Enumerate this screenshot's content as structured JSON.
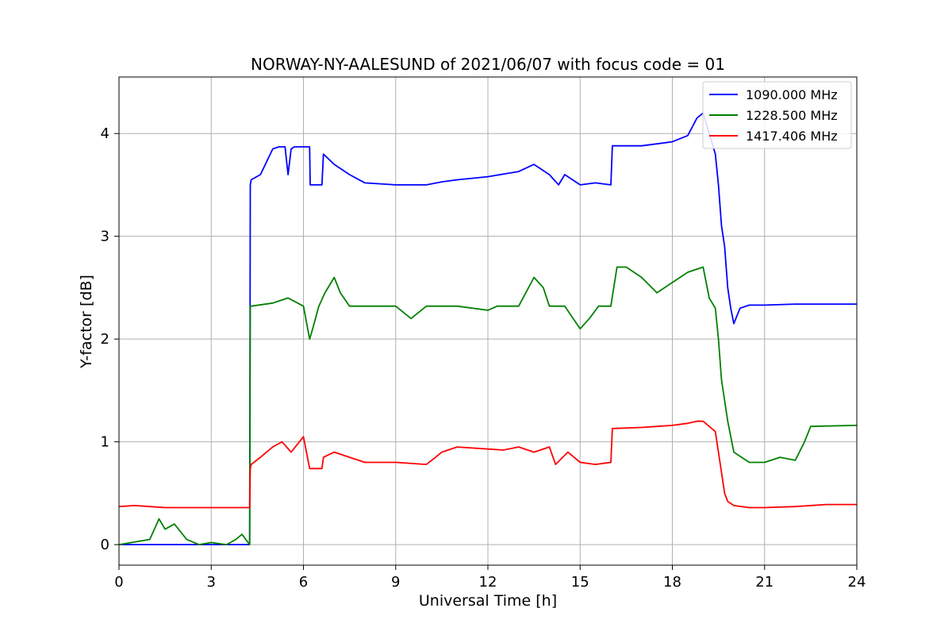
{
  "chart_data": {
    "type": "line",
    "title": "NORWAY-NY-AALESUND of 2021/06/07 with focus code = 01",
    "xlabel": "Universal Time [h]",
    "ylabel": "Y-factor [dB]",
    "xlim": [
      0,
      24
    ],
    "ylim": [
      -0.2,
      4.55
    ],
    "xticks": [
      0,
      3,
      6,
      9,
      12,
      15,
      18,
      21,
      24
    ],
    "xtick_labels": [
      "0",
      "3",
      "6",
      "9",
      "12",
      "15",
      "18",
      "21",
      "24"
    ],
    "yticks": [
      0,
      1,
      2,
      3,
      4
    ],
    "ytick_labels": [
      "0",
      "1",
      "2",
      "3",
      "4"
    ],
    "grid": true,
    "legend_position": "top-right",
    "series": [
      {
        "name": "1090.000 MHz",
        "color": "#0000ff",
        "x": [
          0,
          4.25,
          4.27,
          4.3,
          4.6,
          5.0,
          5.2,
          5.4,
          5.5,
          5.6,
          5.7,
          6.2,
          6.22,
          6.6,
          6.65,
          7.0,
          7.5,
          8.0,
          9.0,
          10.0,
          10.5,
          11.0,
          12.0,
          13.0,
          13.5,
          14.0,
          14.3,
          14.5,
          15.0,
          15.5,
          16.0,
          16.05,
          16.1,
          17.0,
          17.5,
          18.0,
          18.5,
          18.8,
          19.0,
          19.2,
          19.4,
          19.5,
          19.6,
          19.7,
          19.8,
          19.9,
          20.0,
          20.2,
          20.5,
          21.0,
          22.0,
          24.0
        ],
        "y": [
          0.0,
          0.0,
          3.5,
          3.55,
          3.6,
          3.85,
          3.87,
          3.87,
          3.6,
          3.85,
          3.87,
          3.87,
          3.5,
          3.5,
          3.8,
          3.7,
          3.6,
          3.52,
          3.5,
          3.5,
          3.53,
          3.55,
          3.58,
          3.63,
          3.7,
          3.6,
          3.5,
          3.6,
          3.5,
          3.52,
          3.5,
          3.88,
          3.88,
          3.88,
          3.9,
          3.92,
          3.98,
          4.15,
          4.2,
          4.0,
          3.8,
          3.5,
          3.1,
          2.9,
          2.5,
          2.3,
          2.15,
          2.3,
          2.33,
          2.33,
          2.34,
          2.34
        ]
      },
      {
        "name": "1228.500 MHz",
        "color": "#008000",
        "x": [
          0,
          1.0,
          1.3,
          1.5,
          1.8,
          2.2,
          2.6,
          3.0,
          3.5,
          3.8,
          4.0,
          4.25,
          4.27,
          4.3,
          5.0,
          5.5,
          6.0,
          6.2,
          6.3,
          6.5,
          6.7,
          7.0,
          7.2,
          7.5,
          8.0,
          9.0,
          9.5,
          10.0,
          11.0,
          12.0,
          12.3,
          13.0,
          13.5,
          13.8,
          14.0,
          14.5,
          15.0,
          15.3,
          15.6,
          16.0,
          16.2,
          16.5,
          17.0,
          17.5,
          18.0,
          18.5,
          19.0,
          19.2,
          19.4,
          19.5,
          19.6,
          19.8,
          20.0,
          20.5,
          21.0,
          21.5,
          22.0,
          22.3,
          22.5,
          24.0
        ],
        "y": [
          0.0,
          0.05,
          0.25,
          0.15,
          0.2,
          0.05,
          0.0,
          0.02,
          0.0,
          0.05,
          0.1,
          0.0,
          2.32,
          2.32,
          2.35,
          2.4,
          2.32,
          2.0,
          2.1,
          2.32,
          2.45,
          2.6,
          2.45,
          2.32,
          2.32,
          2.32,
          2.2,
          2.32,
          2.32,
          2.28,
          2.32,
          2.32,
          2.6,
          2.5,
          2.32,
          2.32,
          2.1,
          2.2,
          2.32,
          2.32,
          2.7,
          2.7,
          2.6,
          2.45,
          2.55,
          2.65,
          2.7,
          2.4,
          2.3,
          2.0,
          1.6,
          1.2,
          0.9,
          0.8,
          0.8,
          0.85,
          0.82,
          1.0,
          1.15,
          1.16
        ]
      },
      {
        "name": "1417.406 MHz",
        "color": "#ff0000",
        "x": [
          0,
          0.5,
          1.0,
          1.5,
          2.0,
          4.25,
          4.27,
          4.3,
          4.6,
          5.0,
          5.3,
          5.6,
          6.0,
          6.2,
          6.25,
          6.6,
          6.65,
          7.0,
          7.5,
          8.0,
          9.0,
          10.0,
          10.3,
          10.5,
          11.0,
          12.0,
          12.5,
          13.0,
          13.5,
          14.0,
          14.2,
          14.6,
          15.0,
          15.5,
          16.0,
          16.05,
          16.1,
          17.0,
          17.5,
          18.0,
          18.5,
          18.8,
          19.0,
          19.2,
          19.4,
          19.5,
          19.6,
          19.7,
          19.8,
          20.0,
          20.5,
          21.0,
          22.0,
          23.0,
          24.0
        ],
        "y": [
          0.37,
          0.38,
          0.37,
          0.36,
          0.36,
          0.36,
          0.74,
          0.78,
          0.85,
          0.95,
          1.0,
          0.9,
          1.05,
          0.74,
          0.74,
          0.74,
          0.85,
          0.9,
          0.85,
          0.8,
          0.8,
          0.78,
          0.85,
          0.9,
          0.95,
          0.93,
          0.92,
          0.95,
          0.9,
          0.95,
          0.78,
          0.9,
          0.8,
          0.78,
          0.8,
          1.13,
          1.13,
          1.14,
          1.15,
          1.16,
          1.18,
          1.2,
          1.2,
          1.15,
          1.1,
          0.9,
          0.7,
          0.5,
          0.42,
          0.38,
          0.36,
          0.36,
          0.37,
          0.39,
          0.39
        ]
      }
    ]
  }
}
